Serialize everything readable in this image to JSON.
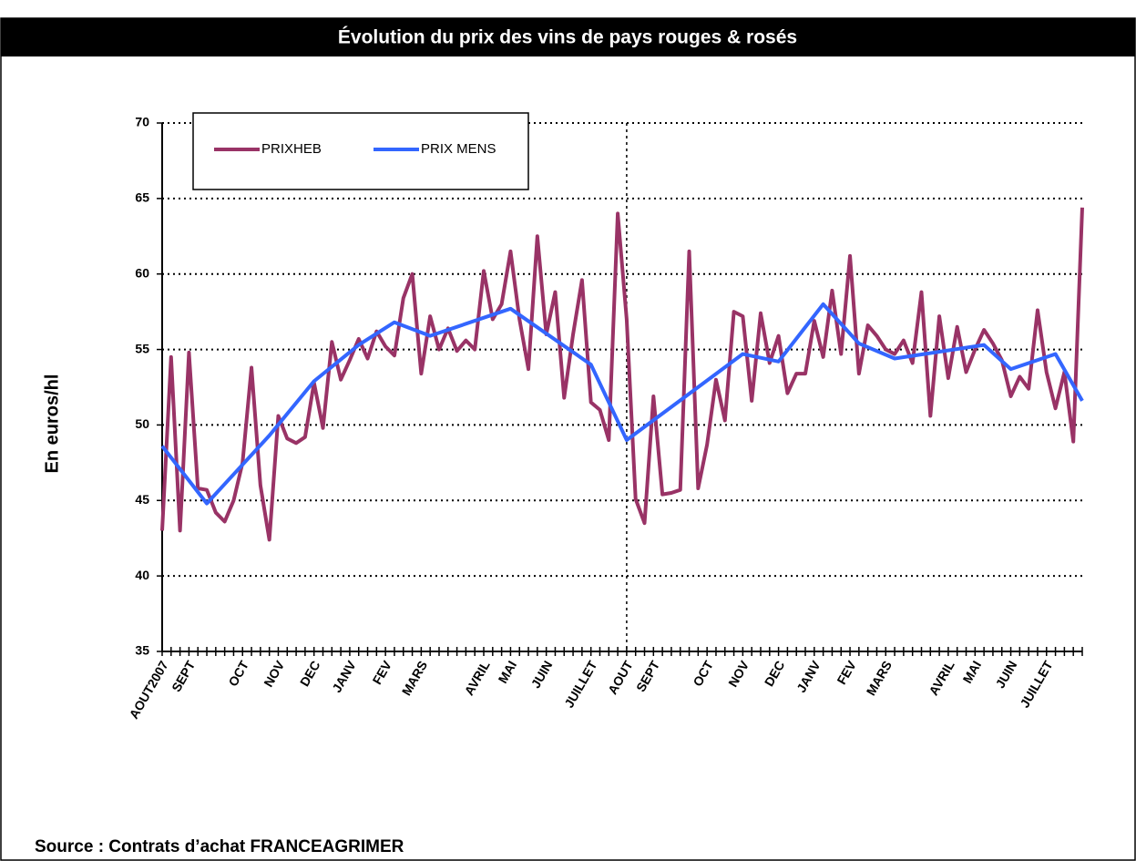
{
  "chart_data": {
    "type": "line",
    "title": "Évolution du prix des vins de pays rouges & rosés",
    "ylabel": "En euros/hl",
    "source": "Source : Contrats d’achat FRANCEAGRIMER",
    "categories": [
      "AOUT2007",
      null,
      null,
      "SEPT",
      null,
      null,
      null,
      null,
      null,
      "OCT",
      null,
      null,
      null,
      "NOV",
      null,
      null,
      null,
      "DEC",
      null,
      null,
      null,
      "JANV",
      null,
      null,
      null,
      "FEV",
      null,
      null,
      null,
      "MARS",
      null,
      null,
      null,
      null,
      null,
      null,
      "AVRIL",
      null,
      null,
      "MAI",
      null,
      null,
      null,
      "JUIN",
      null,
      null,
      null,
      null,
      "JUILLET",
      null,
      null,
      null,
      "AOUT",
      null,
      null,
      "SEPT",
      null,
      null,
      null,
      null,
      null,
      "OCT",
      null,
      null,
      null,
      "NOV",
      null,
      null,
      null,
      "DEC",
      null,
      null,
      null,
      "JANV",
      null,
      null,
      null,
      "FEV",
      null,
      null,
      null,
      "MARS",
      null,
      null,
      null,
      null,
      null,
      null,
      "AVRIL",
      null,
      null,
      "MAI",
      null,
      null,
      null,
      "JUIN",
      null,
      null,
      null,
      "JUILLET",
      null,
      null,
      null,
      null
    ],
    "xlim": [
      0,
      103
    ],
    "vertical_line_at": 52,
    "series": [
      {
        "name": "PRIXHEB",
        "color": "#993366",
        "values": [
          43,
          54.5,
          43,
          54.8,
          45.8,
          45.7,
          44.2,
          43.6,
          45,
          47.5,
          53.8,
          46,
          42.4,
          50.6,
          49.1,
          48.8,
          49.2,
          52.8,
          49.8,
          55.5,
          53,
          54.3,
          55.7,
          54.4,
          56.2,
          55.2,
          54.6,
          58.4,
          60,
          53.4,
          57.2,
          55,
          56.4,
          54.9,
          55.6,
          55,
          60.2,
          57,
          58,
          61.5,
          57,
          53.7,
          62.5,
          56,
          58.8,
          51.8,
          56,
          59.6,
          51.5,
          51,
          49,
          64,
          57,
          45.1,
          43.5,
          51.9,
          45.4,
          45.5,
          45.7,
          61.5,
          45.8,
          48.7,
          53,
          50.3,
          57.5,
          57.2,
          51.6,
          57.4,
          54.1,
          55.9,
          52.1,
          53.4,
          53.4,
          56.9,
          54.5,
          58.9,
          54.7,
          61.2,
          53.4,
          56.6,
          55.9,
          55,
          54.7,
          55.6,
          54.1,
          58.8,
          50.6,
          57.2,
          53.1,
          56.5,
          53.5,
          55,
          56.3,
          55.4,
          54.3,
          51.9,
          53.2,
          52.4,
          57.6,
          53.5,
          51.1,
          53.5,
          48.9,
          64.4
        ]
      },
      {
        "name": "PRIX MENS",
        "color": "#3366ff",
        "x": [
          0,
          5,
          12,
          17,
          22,
          26,
          30,
          39,
          48,
          52,
          65,
          69,
          74,
          78,
          82,
          92,
          95,
          100,
          103
        ],
        "values": [
          48.6,
          44.8,
          49.3,
          52.9,
          55.3,
          56.8,
          55.9,
          57.7,
          54,
          49,
          54.7,
          54.2,
          58,
          55.4,
          54.4,
          55.3,
          53.7,
          54.7,
          51.6
        ]
      }
    ],
    "ylim": [
      35,
      70
    ],
    "yticks": [
      35,
      40,
      45,
      50,
      55,
      60,
      65,
      70
    ],
    "grid": true
  }
}
